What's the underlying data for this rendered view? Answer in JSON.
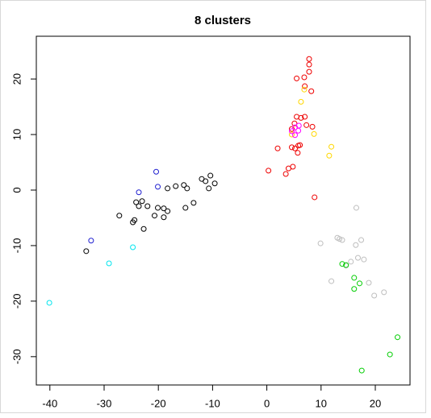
{
  "chart_data": {
    "type": "scatter",
    "title": "8 clusters",
    "xlim": [
      -42.5,
      26.4
    ],
    "ylim": [
      -35.1,
      27.7
    ],
    "xticks": [
      -40,
      -30,
      -20,
      -10,
      0,
      10,
      20
    ],
    "yticks": [
      -30,
      -20,
      -10,
      0,
      10,
      20
    ],
    "series": [
      {
        "color": "#000000",
        "x": [
          -33.3,
          -27.2,
          -24.7,
          -24.4,
          -24.1,
          -23.6,
          -23.0,
          -22.7,
          -22.0,
          -20.7,
          -20.1,
          -19.0,
          -19.0,
          -18.3,
          -18.3,
          -16.8,
          -15.3,
          -15.0,
          -14.7,
          -13.5,
          -12.0,
          -11.3,
          -10.4,
          -10.7,
          -9.6
        ],
        "values": [
          -11.0,
          -4.6,
          -5.8,
          -5.4,
          -2.2,
          -2.9,
          -2.0,
          -7.0,
          -2.9,
          -4.6,
          -3.2,
          -4.9,
          -3.3,
          -3.8,
          0.3,
          0.7,
          0.9,
          -3.2,
          0.3,
          -2.3,
          2.0,
          1.6,
          2.6,
          0.3,
          1.2
        ]
      },
      {
        "color": "#2020d0",
        "x": [
          -32.4,
          -23.6,
          -20.4,
          -20.1
        ],
        "values": [
          -9.1,
          -0.4,
          3.3,
          0.6
        ]
      },
      {
        "color": "#00e5ee",
        "x": [
          -40.1,
          -29.1,
          -24.7
        ],
        "values": [
          -20.3,
          -13.2,
          -10.3
        ]
      },
      {
        "color": "#ee0000",
        "x": [
          0.3,
          2.0,
          3.5,
          4.0,
          4.8,
          4.6,
          4.6,
          5.1,
          5.2,
          5.5,
          5.5,
          5.7,
          5.8,
          6.3,
          6.1,
          6.9,
          7.0,
          7.0,
          7.8,
          7.8,
          7.8,
          8.2,
          8.4,
          8.8,
          7.3
        ],
        "values": [
          3.5,
          7.5,
          2.9,
          3.9,
          4.2,
          7.7,
          11.0,
          12.0,
          7.5,
          20.1,
          13.2,
          6.7,
          8.0,
          13.0,
          8.1,
          20.3,
          18.7,
          13.2,
          23.6,
          22.6,
          21.3,
          17.8,
          11.4,
          -1.3,
          11.7
        ]
      },
      {
        "color": "#ffd700",
        "x": [
          6.3,
          8.7,
          11.9,
          11.5,
          4.6,
          6.9
        ],
        "values": [
          15.9,
          10.1,
          7.8,
          6.2,
          10.0,
          18.1
        ]
      },
      {
        "color": "#ff00ff",
        "x": [
          4.6,
          5.2,
          5.8,
          5.2,
          5.9
        ],
        "values": [
          10.6,
          9.9,
          10.7,
          11.3,
          11.6
        ]
      },
      {
        "color": "#bebebe",
        "x": [
          16.5,
          9.9,
          13.0,
          13.4,
          13.9,
          11.9,
          15.5,
          16.8,
          16.4,
          17.4,
          17.9,
          18.8,
          19.8,
          21.6,
          14.6
        ],
        "values": [
          -3.2,
          -9.6,
          -8.6,
          -8.8,
          -9.0,
          -16.4,
          -12.9,
          -12.2,
          -9.9,
          -9.0,
          -12.5,
          -16.7,
          -19.0,
          -18.4,
          -13.6
        ]
      },
      {
        "color": "#00cd00",
        "x": [
          13.9,
          14.6,
          16.1,
          16.1,
          17.1,
          17.5,
          22.7,
          24.1
        ],
        "values": [
          -13.3,
          -13.5,
          -15.8,
          -17.8,
          -16.8,
          -32.5,
          -29.6,
          -26.5
        ]
      }
    ]
  }
}
